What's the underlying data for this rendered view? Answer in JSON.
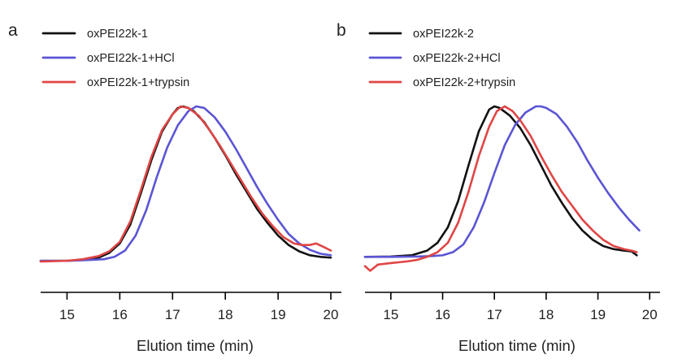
{
  "chart_data": [
    {
      "type": "line",
      "panel": "a",
      "xlabel": "Elution time (min)",
      "ylabel": "",
      "xlim": [
        14.5,
        20.2
      ],
      "ylim": [
        0,
        1
      ],
      "xticks": [
        15,
        16,
        17,
        18,
        19,
        20
      ],
      "yaxis_visible": false,
      "grid": false,
      "legend_position": "top-left",
      "series": [
        {
          "name": "oxPEI22k-1",
          "color": "#111111",
          "points": [
            [
              14.5,
              0.02
            ],
            [
              15.0,
              0.02
            ],
            [
              15.3,
              0.025
            ],
            [
              15.6,
              0.04
            ],
            [
              15.8,
              0.07
            ],
            [
              16.0,
              0.13
            ],
            [
              16.2,
              0.25
            ],
            [
              16.4,
              0.45
            ],
            [
              16.6,
              0.66
            ],
            [
              16.8,
              0.84
            ],
            [
              17.0,
              0.95
            ],
            [
              17.1,
              0.99
            ],
            [
              17.2,
              1.0
            ],
            [
              17.3,
              0.99
            ],
            [
              17.4,
              0.97
            ],
            [
              17.6,
              0.9
            ],
            [
              17.8,
              0.8
            ],
            [
              18.0,
              0.69
            ],
            [
              18.2,
              0.57
            ],
            [
              18.4,
              0.46
            ],
            [
              18.6,
              0.35
            ],
            [
              18.8,
              0.26
            ],
            [
              19.0,
              0.18
            ],
            [
              19.2,
              0.12
            ],
            [
              19.4,
              0.08
            ],
            [
              19.6,
              0.055
            ],
            [
              19.8,
              0.045
            ],
            [
              20.0,
              0.04
            ]
          ]
        },
        {
          "name": "oxPEI22k-1+HCl",
          "color": "#5b55d4",
          "points": [
            [
              14.5,
              0.02
            ],
            [
              15.0,
              0.02
            ],
            [
              15.4,
              0.025
            ],
            [
              15.7,
              0.03
            ],
            [
              15.9,
              0.045
            ],
            [
              16.1,
              0.085
            ],
            [
              16.3,
              0.18
            ],
            [
              16.5,
              0.34
            ],
            [
              16.7,
              0.55
            ],
            [
              16.9,
              0.74
            ],
            [
              17.1,
              0.88
            ],
            [
              17.3,
              0.97
            ],
            [
              17.45,
              1.0
            ],
            [
              17.6,
              0.99
            ],
            [
              17.8,
              0.93
            ],
            [
              18.0,
              0.84
            ],
            [
              18.2,
              0.73
            ],
            [
              18.4,
              0.61
            ],
            [
              18.6,
              0.49
            ],
            [
              18.8,
              0.38
            ],
            [
              19.0,
              0.28
            ],
            [
              19.2,
              0.19
            ],
            [
              19.4,
              0.13
            ],
            [
              19.6,
              0.09
            ],
            [
              19.8,
              0.065
            ],
            [
              20.0,
              0.055
            ]
          ]
        },
        {
          "name": "oxPEI22k-1+trypsin",
          "color": "#e04545",
          "points": [
            [
              14.5,
              0.015
            ],
            [
              15.0,
              0.02
            ],
            [
              15.3,
              0.03
            ],
            [
              15.6,
              0.05
            ],
            [
              15.8,
              0.08
            ],
            [
              16.0,
              0.14
            ],
            [
              16.2,
              0.27
            ],
            [
              16.4,
              0.47
            ],
            [
              16.6,
              0.68
            ],
            [
              16.8,
              0.85
            ],
            [
              17.0,
              0.95
            ],
            [
              17.15,
              1.0
            ],
            [
              17.3,
              0.99
            ],
            [
              17.5,
              0.94
            ],
            [
              17.7,
              0.85
            ],
            [
              17.9,
              0.75
            ],
            [
              18.1,
              0.64
            ],
            [
              18.3,
              0.53
            ],
            [
              18.5,
              0.42
            ],
            [
              18.7,
              0.32
            ],
            [
              18.9,
              0.24
            ],
            [
              19.1,
              0.17
            ],
            [
              19.3,
              0.13
            ],
            [
              19.45,
              0.12
            ],
            [
              19.6,
              0.12
            ],
            [
              19.72,
              0.13
            ],
            [
              19.85,
              0.11
            ],
            [
              20.0,
              0.085
            ]
          ]
        }
      ]
    },
    {
      "type": "line",
      "panel": "b",
      "xlabel": "Elution time (min)",
      "ylabel": "",
      "xlim": [
        14.5,
        20.2
      ],
      "ylim": [
        0,
        1
      ],
      "xticks": [
        15,
        16,
        17,
        18,
        19,
        20
      ],
      "yaxis_visible": false,
      "grid": false,
      "legend_position": "top-left",
      "series": [
        {
          "name": "oxPEI22k-2",
          "color": "#111111",
          "points": [
            [
              14.5,
              0.03
            ],
            [
              15.0,
              0.032
            ],
            [
              15.4,
              0.04
            ],
            [
              15.7,
              0.07
            ],
            [
              15.9,
              0.12
            ],
            [
              16.1,
              0.22
            ],
            [
              16.3,
              0.39
            ],
            [
              16.5,
              0.62
            ],
            [
              16.7,
              0.84
            ],
            [
              16.9,
              0.98
            ],
            [
              17.0,
              1.0
            ],
            [
              17.1,
              0.99
            ],
            [
              17.3,
              0.94
            ],
            [
              17.5,
              0.86
            ],
            [
              17.7,
              0.75
            ],
            [
              17.9,
              0.62
            ],
            [
              18.1,
              0.49
            ],
            [
              18.3,
              0.38
            ],
            [
              18.5,
              0.28
            ],
            [
              18.7,
              0.2
            ],
            [
              18.9,
              0.14
            ],
            [
              19.1,
              0.1
            ],
            [
              19.3,
              0.08
            ],
            [
              19.5,
              0.07
            ],
            [
              19.65,
              0.065
            ],
            [
              19.75,
              0.04
            ]
          ]
        },
        {
          "name": "oxPEI22k-2+HCl",
          "color": "#5b55d4",
          "points": [
            [
              14.5,
              0.03
            ],
            [
              15.0,
              0.03
            ],
            [
              15.5,
              0.032
            ],
            [
              15.8,
              0.035
            ],
            [
              16.0,
              0.04
            ],
            [
              16.2,
              0.06
            ],
            [
              16.4,
              0.11
            ],
            [
              16.6,
              0.22
            ],
            [
              16.8,
              0.38
            ],
            [
              17.0,
              0.57
            ],
            [
              17.2,
              0.75
            ],
            [
              17.4,
              0.88
            ],
            [
              17.6,
              0.96
            ],
            [
              17.8,
              1.0
            ],
            [
              17.9,
              1.0
            ],
            [
              18.0,
              0.99
            ],
            [
              18.2,
              0.95
            ],
            [
              18.4,
              0.87
            ],
            [
              18.6,
              0.77
            ],
            [
              18.8,
              0.65
            ],
            [
              19.0,
              0.54
            ],
            [
              19.2,
              0.44
            ],
            [
              19.4,
              0.35
            ],
            [
              19.6,
              0.27
            ],
            [
              19.8,
              0.2
            ]
          ]
        },
        {
          "name": "oxPEI22k-2+trypsin",
          "color": "#e04545",
          "points": [
            [
              14.5,
              -0.03
            ],
            [
              14.6,
              -0.06
            ],
            [
              14.75,
              -0.02
            ],
            [
              15.0,
              -0.01
            ],
            [
              15.3,
              0.0
            ],
            [
              15.5,
              0.01
            ],
            [
              15.7,
              0.03
            ],
            [
              15.9,
              0.06
            ],
            [
              16.1,
              0.12
            ],
            [
              16.3,
              0.25
            ],
            [
              16.5,
              0.45
            ],
            [
              16.7,
              0.68
            ],
            [
              16.9,
              0.87
            ],
            [
              17.05,
              0.97
            ],
            [
              17.2,
              1.0
            ],
            [
              17.35,
              0.97
            ],
            [
              17.5,
              0.91
            ],
            [
              17.7,
              0.81
            ],
            [
              17.9,
              0.68
            ],
            [
              18.1,
              0.56
            ],
            [
              18.3,
              0.45
            ],
            [
              18.5,
              0.36
            ],
            [
              18.7,
              0.27
            ],
            [
              18.9,
              0.2
            ],
            [
              19.1,
              0.14
            ],
            [
              19.3,
              0.1
            ],
            [
              19.5,
              0.08
            ],
            [
              19.65,
              0.07
            ],
            [
              19.75,
              0.06
            ]
          ]
        }
      ]
    }
  ]
}
